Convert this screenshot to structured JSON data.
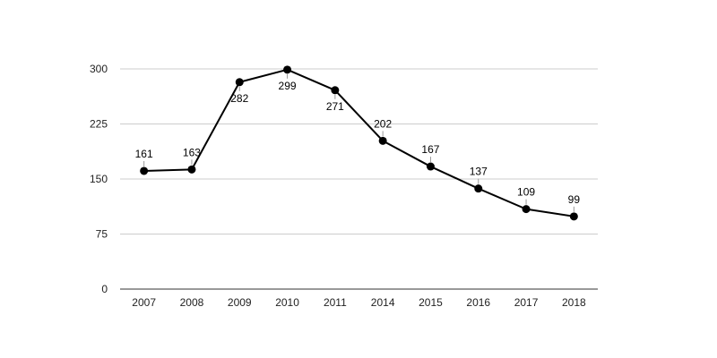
{
  "chart_data": {
    "type": "line",
    "categories": [
      "2007",
      "2008",
      "2009",
      "2010",
      "2011",
      "2014",
      "2015",
      "2016",
      "2017",
      "2018"
    ],
    "series": [
      {
        "values": [
          161,
          163,
          282,
          299,
          271,
          202,
          167,
          137,
          109,
          99
        ]
      }
    ],
    "ylim": [
      0,
      300
    ],
    "yticks": [
      0,
      75,
      150,
      225,
      300
    ],
    "grid": true,
    "data_labels": [
      "161",
      "163",
      "282",
      "299",
      "271",
      "202",
      "167",
      "137",
      "109",
      "99"
    ],
    "colors": {
      "line": "#000000",
      "grid": "#cccccc",
      "axis": "#333333"
    }
  }
}
